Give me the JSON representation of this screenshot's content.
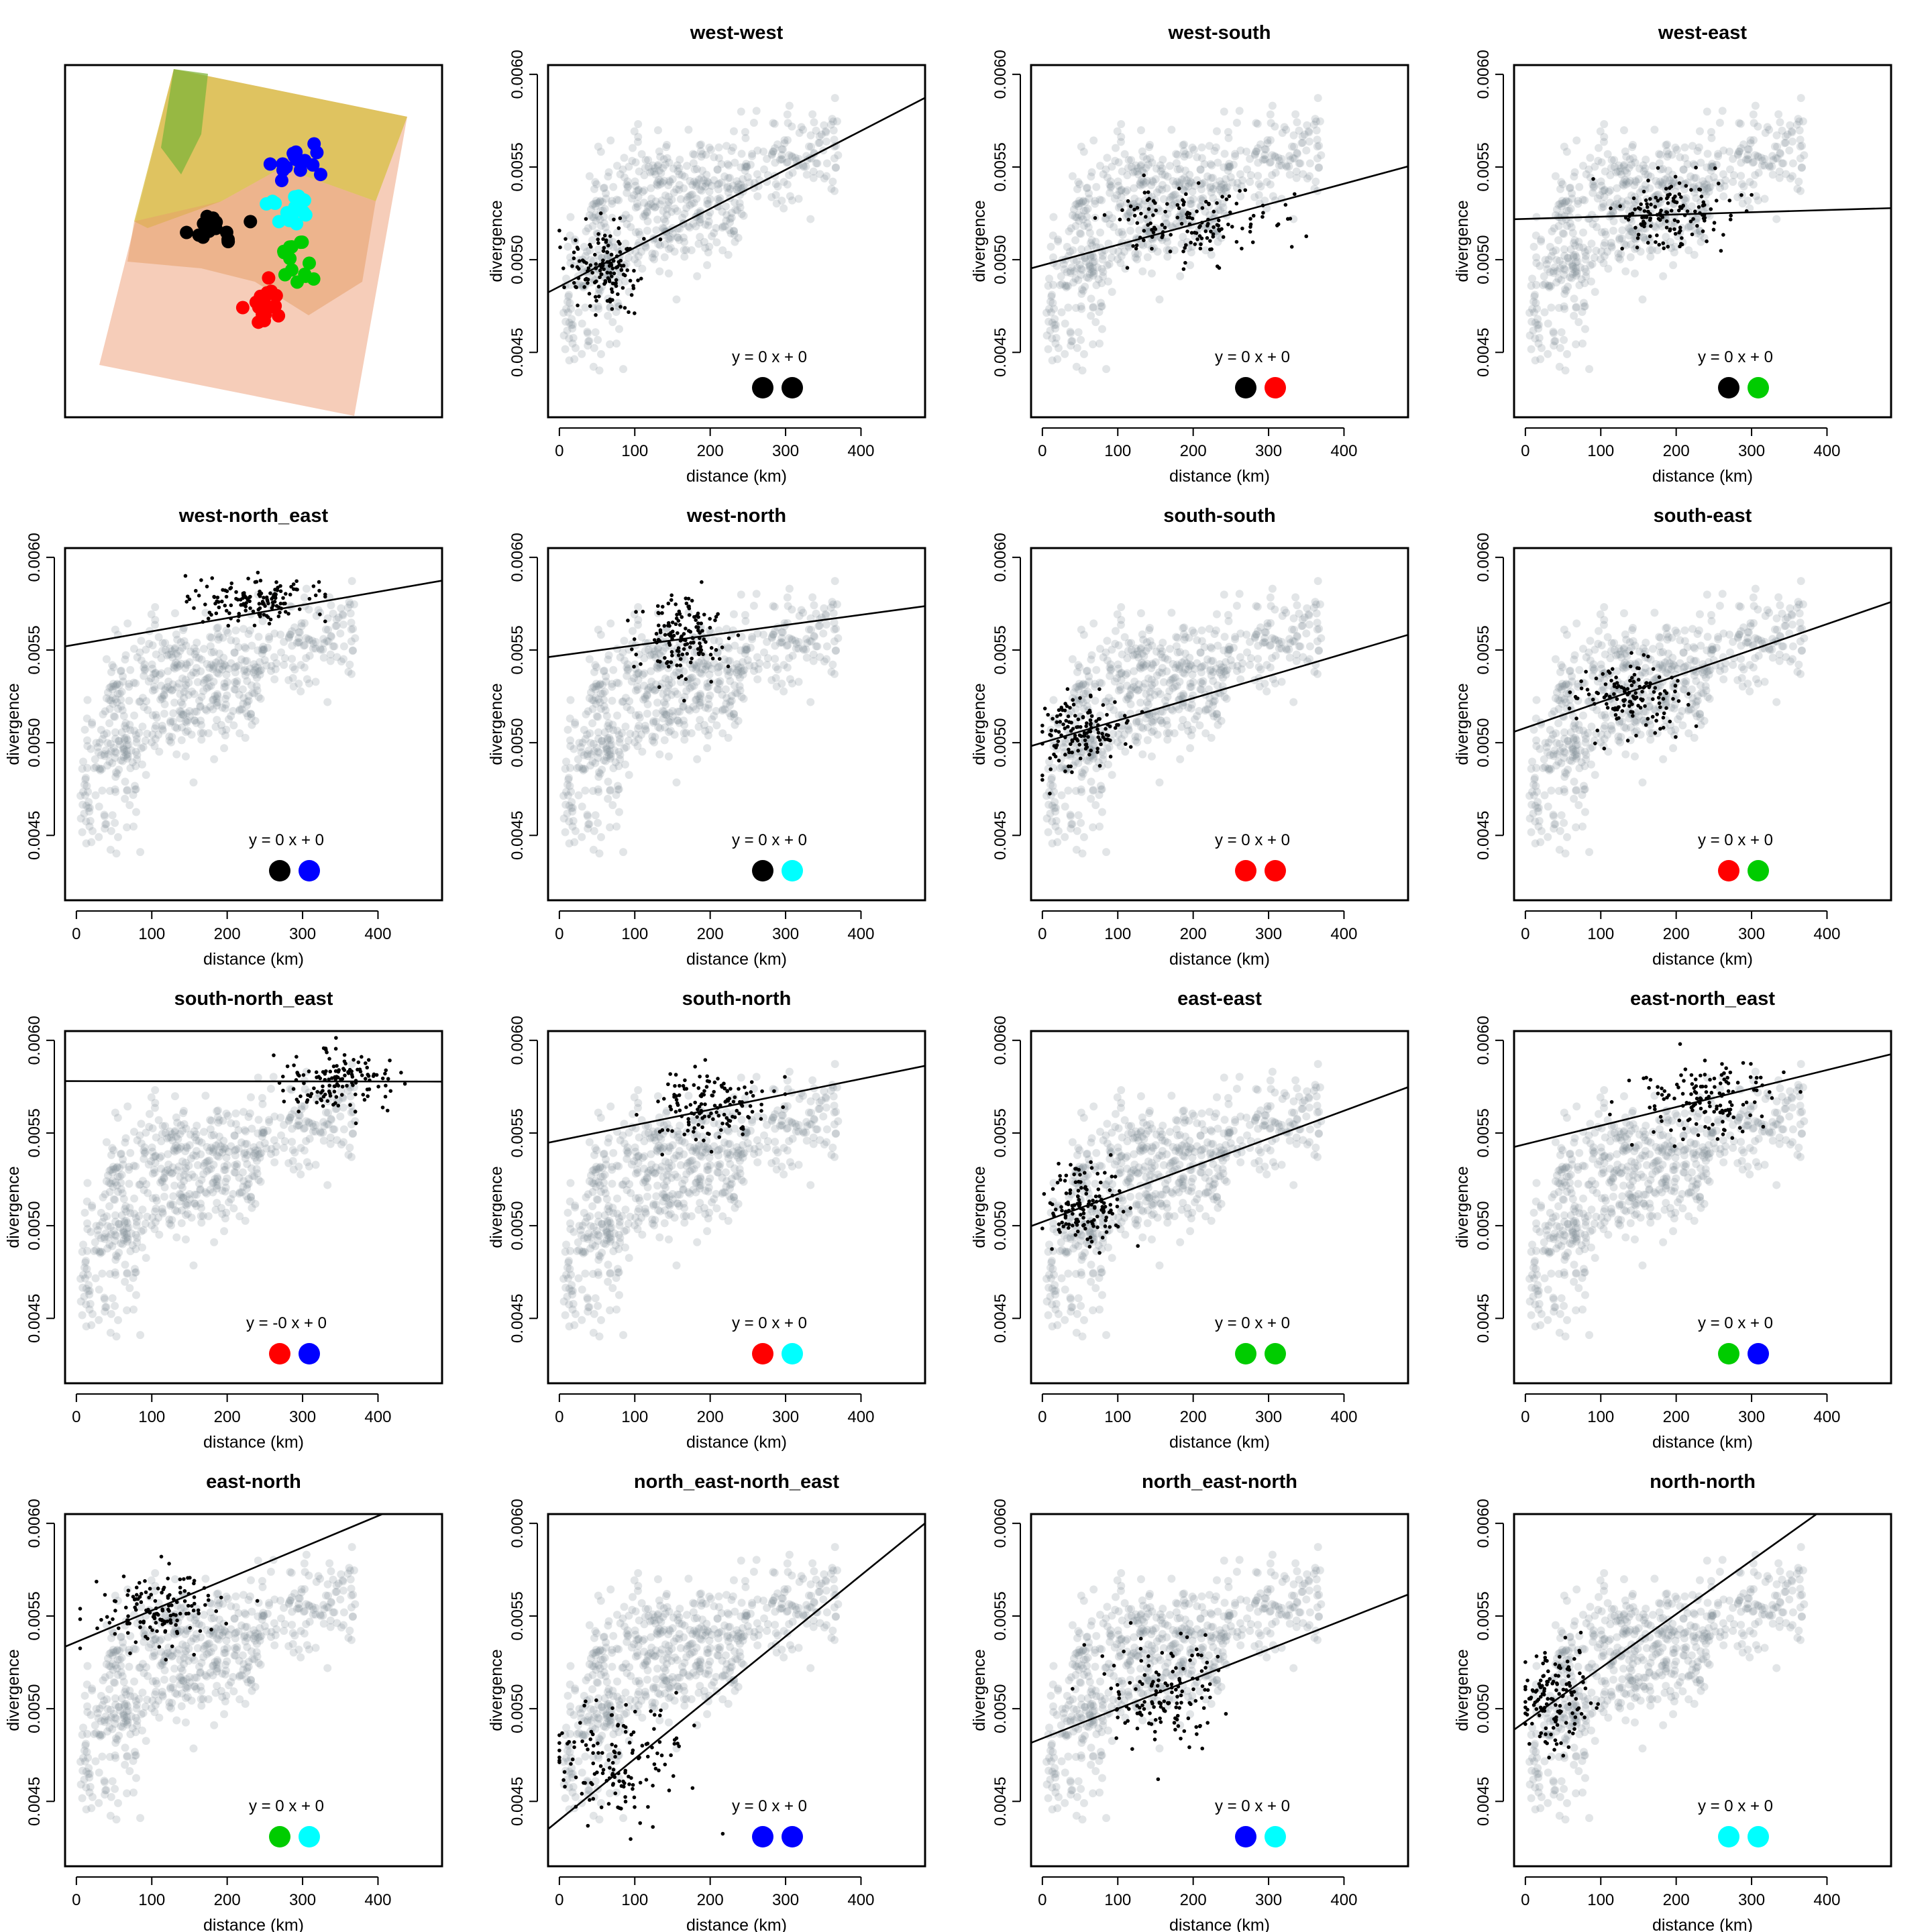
{
  "figure": {
    "type": "scatter-grid",
    "background_color": "#ffffff",
    "cloud_color": "#7a8890",
    "focus_color": "#000000"
  },
  "group_colors": {
    "west": "#000000",
    "south": "#ff0000",
    "east": "#00cc00",
    "north_east": "#0000ff",
    "north": "#00ffff"
  },
  "map": {
    "groups": [
      {
        "name": "west",
        "color": "#000000"
      },
      {
        "name": "south",
        "color": "#ff0000"
      },
      {
        "name": "east",
        "color": "#00cc00"
      },
      {
        "name": "north_east",
        "color": "#0000ff"
      },
      {
        "name": "north",
        "color": "#00ffff"
      }
    ]
  },
  "axes": {
    "xlabel": "distance (km)",
    "ylabel": "divergence",
    "xlim": [
      -15,
      485
    ],
    "ylim": [
      0.00415,
      0.00605
    ],
    "xticks": [
      0,
      100,
      200,
      300,
      400
    ],
    "xtick_labels": [
      "0",
      "100",
      "200",
      "300",
      "400"
    ],
    "yticks": [
      0.0045,
      0.005,
      0.0055,
      0.006
    ],
    "ytick_labels": [
      "0.0045",
      "0.0050",
      "0.0055",
      "0.0060"
    ],
    "log_scale": false,
    "grid": false
  },
  "chart_data": [
    {
      "type": "scatter",
      "title": "west-west",
      "equation": "y = 0 x + 0",
      "pair": [
        "west",
        "west"
      ],
      "line": {
        "intercept": 0.004855,
        "slope": 2.1e-06
      },
      "focus": {
        "x_center": 60,
        "x_sd": 25,
        "y_center": 0.00495,
        "y_sd": 0.00012,
        "x_min": 0,
        "x_max": 150
      }
    },
    {
      "type": "scatter",
      "title": "west-south",
      "equation": "y = 0 x + 0",
      "pair": [
        "west",
        "south"
      ],
      "line": {
        "intercept": 0.00497,
        "slope": 1.1e-06
      },
      "focus": {
        "x_center": 200,
        "x_sd": 60,
        "y_center": 0.0052,
        "y_sd": 0.0001,
        "x_min": 70,
        "x_max": 350
      }
    },
    {
      "type": "scatter",
      "title": "west-east",
      "equation": "y = 0 x + 0",
      "pair": [
        "west",
        "east"
      ],
      "line": {
        "intercept": 0.00522,
        "slope": 1.2e-07
      },
      "focus": {
        "x_center": 190,
        "x_sd": 40,
        "y_center": 0.00525,
        "y_sd": 0.0001,
        "x_min": 90,
        "x_max": 300
      }
    },
    {
      "type": "scatter",
      "title": "west-north_east",
      "equation": "y = 0 x + 0",
      "pair": [
        "west",
        "north_east"
      ],
      "line": {
        "intercept": 0.00553,
        "slope": 7.1e-07
      },
      "focus": {
        "x_center": 240,
        "x_sd": 45,
        "y_center": 0.00576,
        "y_sd": 6e-05,
        "x_min": 140,
        "x_max": 330
      }
    },
    {
      "type": "scatter",
      "title": "west-north",
      "equation": "y = 0 x + 0",
      "pair": [
        "west",
        "north"
      ],
      "line": {
        "intercept": 0.00547,
        "slope": 5.5e-07
      },
      "focus": {
        "x_center": 165,
        "x_sd": 30,
        "y_center": 0.00557,
        "y_sd": 0.00011,
        "x_min": 70,
        "x_max": 280
      }
    },
    {
      "type": "scatter",
      "title": "south-south",
      "equation": "y = 0 x + 0",
      "pair": [
        "south",
        "south"
      ],
      "line": {
        "intercept": 0.005,
        "slope": 1.2e-06
      },
      "focus": {
        "x_center": 50,
        "x_sd": 30,
        "y_center": 0.00507,
        "y_sd": 0.0001,
        "x_min": 0,
        "x_max": 190
      }
    },
    {
      "type": "scatter",
      "title": "south-east",
      "equation": "y = 0 x + 0",
      "pair": [
        "south",
        "east"
      ],
      "line": {
        "intercept": 0.00508,
        "slope": 1.4e-06
      },
      "focus": {
        "x_center": 135,
        "x_sd": 35,
        "y_center": 0.00524,
        "y_sd": 0.0001,
        "x_min": 40,
        "x_max": 260
      }
    },
    {
      "type": "scatter",
      "title": "south-north_east",
      "equation": "y = -0 x + 0",
      "pair": [
        "south",
        "north_east"
      ],
      "line": {
        "intercept": 0.00578,
        "slope": -5e-09
      },
      "focus": {
        "x_center": 350,
        "x_sd": 40,
        "y_center": 0.00578,
        "y_sd": 8e-05,
        "x_min": 240,
        "x_max": 460
      }
    },
    {
      "type": "scatter",
      "title": "south-north",
      "equation": "y = 0 x + 0",
      "pair": [
        "south",
        "north"
      ],
      "line": {
        "intercept": 0.00546,
        "slope": 8.3e-07
      },
      "focus": {
        "x_center": 200,
        "x_sd": 40,
        "y_center": 0.00565,
        "y_sd": 0.0001,
        "x_min": 100,
        "x_max": 320
      }
    },
    {
      "type": "scatter",
      "title": "east-east",
      "equation": "y = 0 x + 0",
      "pair": [
        "east",
        "east"
      ],
      "line": {
        "intercept": 0.00502,
        "slope": 1.5e-06
      },
      "focus": {
        "x_center": 55,
        "x_sd": 30,
        "y_center": 0.0051,
        "y_sd": 0.00012,
        "x_min": 0,
        "x_max": 140
      }
    },
    {
      "type": "scatter",
      "title": "east-north_east",
      "equation": "y = 0 x + 0",
      "pair": [
        "east",
        "north_east"
      ],
      "line": {
        "intercept": 0.00544,
        "slope": 1e-06
      },
      "focus": {
        "x_center": 240,
        "x_sd": 45,
        "y_center": 0.0057,
        "y_sd": 0.0001,
        "x_min": 90,
        "x_max": 370
      }
    },
    {
      "type": "scatter",
      "title": "east-north",
      "equation": "y = 0 x + 0",
      "pair": [
        "east",
        "north"
      ],
      "line": {
        "intercept": 0.00536,
        "slope": 1.7e-06
      },
      "focus": {
        "x_center": 110,
        "x_sd": 40,
        "y_center": 0.00553,
        "y_sd": 0.0001,
        "x_min": 5,
        "x_max": 240
      }
    },
    {
      "type": "scatter",
      "title": "north_east-north_east",
      "equation": "y = 0 x + 0",
      "pair": [
        "north_east",
        "north_east"
      ],
      "line": {
        "intercept": 0.0044,
        "slope": 3.3e-06
      },
      "focus": {
        "x_center": 70,
        "x_sd": 45,
        "y_center": 0.00472,
        "y_sd": 0.00016,
        "x_min": 0,
        "x_max": 240
      }
    },
    {
      "type": "scatter",
      "title": "north_east-north",
      "equation": "y = 0 x + 0",
      "pair": [
        "north_east",
        "north"
      ],
      "line": {
        "intercept": 0.00484,
        "slope": 1.6e-06
      },
      "focus": {
        "x_center": 160,
        "x_sd": 40,
        "y_center": 0.0051,
        "y_sd": 0.00014,
        "x_min": 40,
        "x_max": 290
      }
    },
    {
      "type": "scatter",
      "title": "north-north",
      "equation": "y = 0 x + 0",
      "pair": [
        "north",
        "north"
      ],
      "line": {
        "intercept": 0.00493,
        "slope": 2.9e-06
      },
      "focus": {
        "x_center": 40,
        "x_sd": 22,
        "y_center": 0.00507,
        "y_sd": 0.00014,
        "x_min": 0,
        "x_max": 140
      }
    }
  ]
}
